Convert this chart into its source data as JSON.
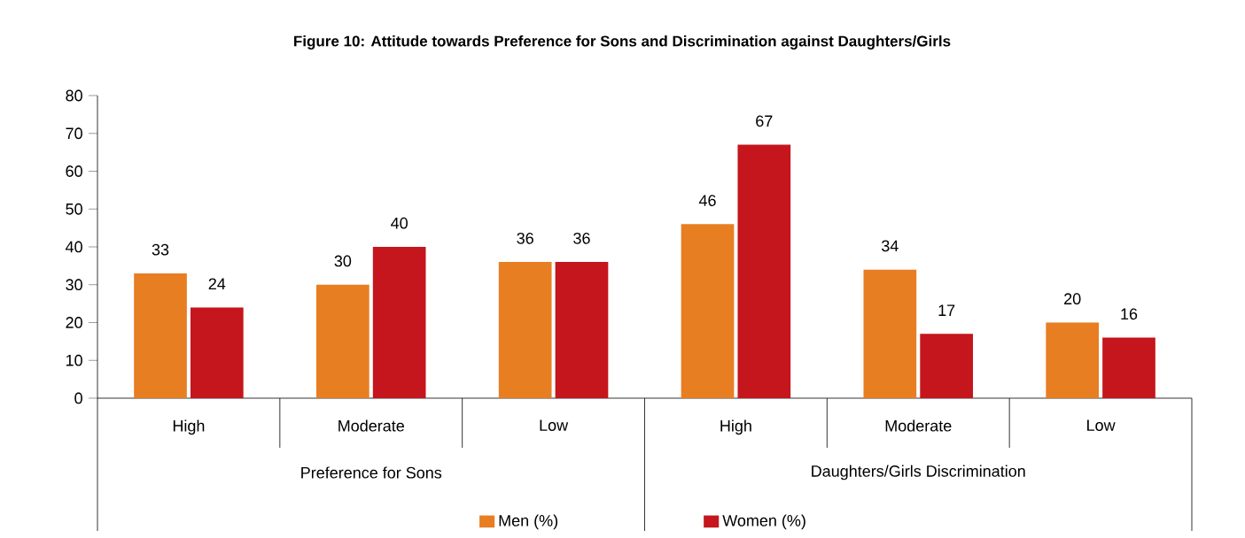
{
  "chart_data": {
    "type": "bar",
    "title": "Figure 10: Attitude towards Preference for Sons and Discrimination against Daughters/Girls",
    "categories": [
      "High",
      "Moderate",
      "Low",
      "High",
      "Moderate",
      "Low"
    ],
    "series": [
      {
        "name": "Men (%)",
        "color": "#e87e22",
        "values": [
          33,
          30,
          36,
          46,
          34,
          20
        ]
      },
      {
        "name": "Women (%)",
        "color": "#c4161c",
        "values": [
          24,
          40,
          36,
          67,
          17,
          16
        ]
      }
    ],
    "ylim": [
      0,
      80
    ],
    "yticks": [
      0,
      10,
      20,
      30,
      40,
      50,
      60,
      70,
      80
    ],
    "data_labels": true,
    "legend": "bottom",
    "grid": false,
    "annotations": [
      "Preference for Sons",
      "Daughters/Girls Discrimination"
    ]
  }
}
